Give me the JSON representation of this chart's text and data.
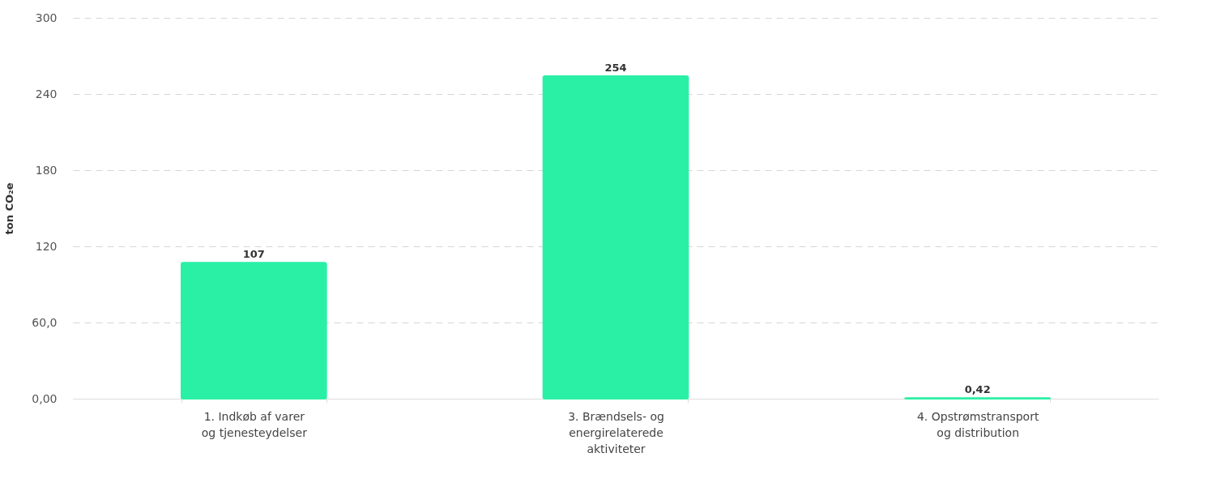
{
  "chart_data": {
    "type": "bar",
    "ylabel": "ton CO₂e",
    "categories": [
      "1. Indkøb af varer og tjenesteydelser",
      "3. Brændsels- og energirelaterede aktiviteter",
      "4. Opstrømstransport og distribution"
    ],
    "series": [
      {
        "color": "#2af0a6",
        "values": [
          107,
          254,
          0.42
        ]
      }
    ],
    "value_labels": [
      "107",
      "254",
      "0,42"
    ],
    "ylim": [
      0,
      300
    ],
    "yticks": [
      {
        "value": 0,
        "label": "0,00"
      },
      {
        "value": 60,
        "label": "60,0"
      },
      120,
      180,
      240,
      300
    ],
    "grid": "y"
  }
}
